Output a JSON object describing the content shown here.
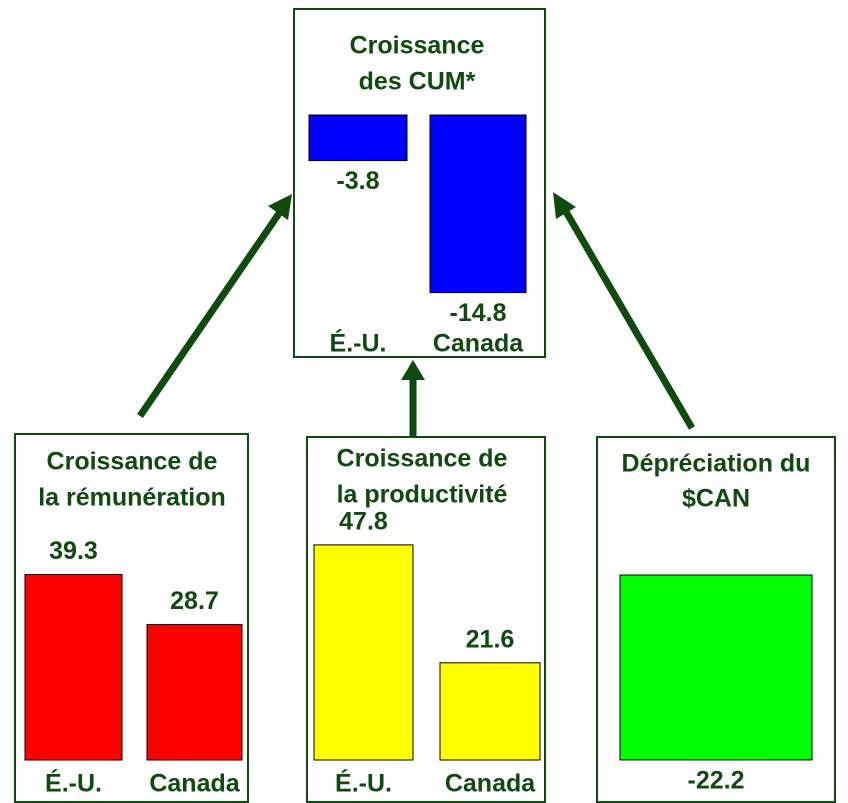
{
  "chart_data": [
    {
      "type": "bar",
      "title": [
        "Croissance",
        "des CUM*"
      ],
      "categories": [
        "É.-U.",
        "Canada"
      ],
      "values": [
        -3.8,
        -14.8
      ],
      "color": "#0000ff"
    },
    {
      "type": "bar",
      "title": [
        "Croissance de",
        "la rémunération"
      ],
      "categories": [
        "É.-U.",
        "Canada"
      ],
      "values": [
        39.3,
        28.7
      ],
      "color": "#ff0000"
    },
    {
      "type": "bar",
      "title": [
        "Croissance de",
        "la productivité"
      ],
      "categories": [
        "É.-U.",
        "Canada"
      ],
      "values": [
        47.8,
        21.6
      ],
      "color": "#ffff00"
    },
    {
      "type": "bar",
      "title": [
        "Dépréciation du",
        "$CAN"
      ],
      "categories": [
        null
      ],
      "values": [
        -22.2
      ],
      "color": "#00ff00"
    }
  ]
}
